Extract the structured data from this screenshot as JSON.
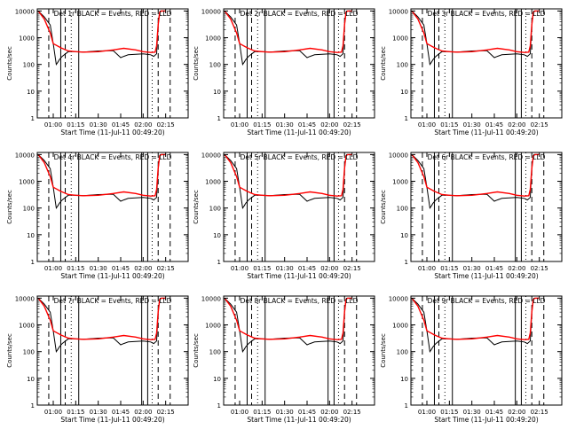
{
  "chart_data": {
    "type": "line",
    "layout_desc": "3x3 grid of detector light curves",
    "y_scale": "log",
    "ylim": [
      1,
      12000
    ],
    "y_ticks": [
      1,
      10,
      100,
      1000,
      10000
    ],
    "y_tick_labels": [
      "1",
      "10",
      "100",
      "1000",
      "10000"
    ],
    "ylabel": "Counts/sec",
    "xlim": [
      "00:49:20",
      "02:30:00"
    ],
    "x_ticks": [
      "01:00",
      "01:15",
      "01:30",
      "01:45",
      "02:00",
      "02:15"
    ],
    "xlabel_prefix": "Start Time",
    "start_text": "(11-Jul-11 00:49:20)",
    "legend_text": "BLACK = Events, RED = LLD",
    "series_colors": {
      "events": "#000000",
      "lld": "#ff0000"
    },
    "series": [
      {
        "name": "Events",
        "color": "#000000",
        "x": [
          "00:50",
          "00:54",
          "00:58",
          "01:00",
          "01:02",
          "01:03",
          "01:04",
          "01:06",
          "01:10",
          "01:15",
          "01:20",
          "01:30",
          "01:40",
          "01:45",
          "01:47",
          "01:50",
          "02:00",
          "02:05",
          "02:07",
          "02:09",
          "02:10",
          "02:11",
          "02:12",
          "02:15"
        ],
        "y": [
          10000,
          6000,
          3000,
          600,
          100,
          120,
          150,
          200,
          300,
          300,
          290,
          320,
          330,
          180,
          200,
          230,
          250,
          230,
          200,
          250,
          3000,
          9000,
          10000,
          10000
        ]
      },
      {
        "name": "LLD",
        "color": "#ff0000",
        "x": [
          "00:50",
          "00:54",
          "00:58",
          "01:00",
          "01:05",
          "01:10",
          "01:15",
          "01:20",
          "01:30",
          "01:40",
          "01:47",
          "01:55",
          "02:00",
          "02:05",
          "02:08",
          "02:09",
          "02:10",
          "02:11",
          "02:12",
          "02:15"
        ],
        "y": [
          10000,
          5000,
          1500,
          600,
          420,
          320,
          300,
          290,
          300,
          350,
          400,
          350,
          300,
          280,
          290,
          500,
          3000,
          9000,
          10000,
          10000
        ]
      }
    ],
    "panels": [
      {
        "title": "Det 1r  BLACK = Events, RED = LLD",
        "xlabel": "Start Time (11-Jul-11 00:49:20)"
      },
      {
        "title": "Det 2r  BLACK = Events, RED = LLD",
        "xlabel": "Start Time (11-Jul-11 00:49:20)"
      },
      {
        "title": "Det 3r  BLACK = Events, RED = LLD",
        "xlabel": "Start Time (11-Jul-11 00:49:20)"
      },
      {
        "title": "Det 4r  BLACK = Events, RED = LLD",
        "xlabel": "Start Time (11-Jul-11 00:49:20)"
      },
      {
        "title": "Det 5r  BLACK = Events, RED = LLD",
        "xlabel": "Start Time (11-Jul-11 00:49:20)"
      },
      {
        "title": "Det 6r  BLACK = Events, RED = LLD",
        "xlabel": "Start Time (11-Jul-11 00:49:20)"
      },
      {
        "title": "Det 7r  BLACK = Events, RED = LLD",
        "xlabel": "Start Time (11-Jul-11 00:49:20)"
      },
      {
        "title": "Det 8r  BLACK = Events, RED = LLD",
        "xlabel": "Start Time (11-Jul-11 00:49:20)"
      },
      {
        "title": "Det 9r  BLACK = Events, RED = LLD",
        "xlabel": "Start Time (11-Jul-11 00:49:20)"
      }
    ],
    "vlines": {
      "solid": [
        "01:05",
        "01:17",
        "01:59",
        "02:03"
      ],
      "dashed": [
        "00:57",
        "01:08",
        "02:10",
        "02:18"
      ],
      "dotted": [
        "01:12",
        "02:06"
      ]
    }
  }
}
